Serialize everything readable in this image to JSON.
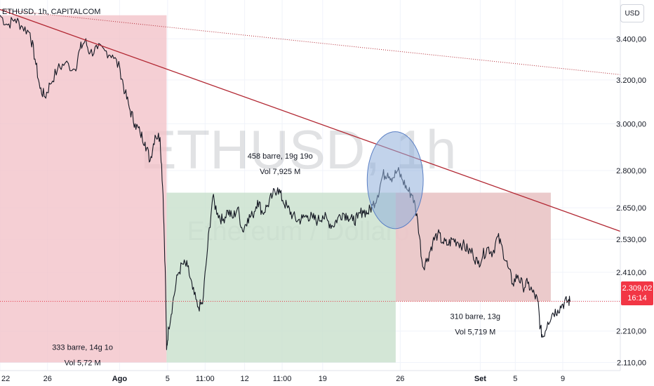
{
  "header": {
    "symbol_line": "ETHUSD, 1h, CAPITALCOM",
    "currency_button": "USD"
  },
  "watermark": {
    "symbol": "ETHUSD, 1h",
    "name": "Ethereum / Dollaro"
  },
  "price_tag": {
    "price": "2.309,02",
    "countdown": "16:14"
  },
  "colors": {
    "up_box": "#c8e0cc",
    "down_box": "#f2c2c8",
    "trendline": "#b22833",
    "price_line": "#e53946",
    "circle": "#8faedb",
    "candles": "#131722"
  },
  "chart_data": {
    "type": "line",
    "title": "",
    "xlabel": "",
    "ylabel": "",
    "y_scale": "log",
    "ylim": [
      2085,
      3600
    ],
    "x_unit": "hours since first visible bar",
    "xlim": [
      0,
      1240
    ],
    "x_ticks": [
      {
        "t": 0,
        "label": "22"
      },
      {
        "t": 95,
        "label": "26"
      },
      {
        "t": 239,
        "label": "Ago"
      },
      {
        "t": 335,
        "label": "5"
      },
      {
        "t": 410,
        "label": "11:00"
      },
      {
        "t": 489,
        "label": "12"
      },
      {
        "t": 564,
        "label": "11:00"
      },
      {
        "t": 645,
        "label": "19"
      },
      {
        "t": 800,
        "label": "26"
      },
      {
        "t": 960,
        "label": "Set"
      },
      {
        "t": 1030,
        "label": "5"
      },
      {
        "t": 1125,
        "label": "9"
      }
    ],
    "y_ticks": [
      {
        "v": 3400,
        "label": "3.400,00"
      },
      {
        "v": 3200,
        "label": "3.200,00"
      },
      {
        "v": 3000,
        "label": "3.000,00"
      },
      {
        "v": 2800,
        "label": "2.800,00"
      },
      {
        "v": 2650,
        "label": "2.650,00"
      },
      {
        "v": 2530,
        "label": "2.530,00"
      },
      {
        "v": 2410,
        "label": "2.410,00"
      },
      {
        "v": 2310,
        "label": ""
      },
      {
        "v": 2210,
        "label": "2.210,00"
      },
      {
        "v": 2110,
        "label": "2.110,00"
      }
    ],
    "series": [
      {
        "points": [
          [
            0,
            3520
          ],
          [
            15,
            3470
          ],
          [
            30,
            3500
          ],
          [
            45,
            3460
          ],
          [
            60,
            3430
          ],
          [
            70,
            3300
          ],
          [
            80,
            3160
          ],
          [
            90,
            3120
          ],
          [
            100,
            3180
          ],
          [
            115,
            3250
          ],
          [
            130,
            3280
          ],
          [
            150,
            3250
          ],
          [
            160,
            3350
          ],
          [
            170,
            3390
          ],
          [
            180,
            3330
          ],
          [
            195,
            3350
          ],
          [
            210,
            3340
          ],
          [
            225,
            3320
          ],
          [
            240,
            3250
          ],
          [
            250,
            3140
          ],
          [
            260,
            3060
          ],
          [
            270,
            3000
          ],
          [
            280,
            2960
          ],
          [
            290,
            2920
          ],
          [
            300,
            2840
          ],
          [
            310,
            2950
          ],
          [
            320,
            2940
          ],
          [
            326,
            2700
          ],
          [
            331,
            2360
          ],
          [
            333,
            2150
          ],
          [
            337,
            2220
          ],
          [
            345,
            2300
          ],
          [
            355,
            2400
          ],
          [
            365,
            2440
          ],
          [
            375,
            2430
          ],
          [
            385,
            2350
          ],
          [
            395,
            2290
          ],
          [
            405,
            2300
          ],
          [
            415,
            2500
          ],
          [
            425,
            2690
          ],
          [
            435,
            2630
          ],
          [
            445,
            2600
          ],
          [
            455,
            2640
          ],
          [
            465,
            2610
          ],
          [
            475,
            2650
          ],
          [
            485,
            2560
          ],
          [
            495,
            2610
          ],
          [
            505,
            2620
          ],
          [
            515,
            2680
          ],
          [
            525,
            2630
          ],
          [
            535,
            2660
          ],
          [
            545,
            2700
          ],
          [
            555,
            2730
          ],
          [
            565,
            2680
          ],
          [
            575,
            2650
          ],
          [
            585,
            2620
          ],
          [
            595,
            2600
          ],
          [
            605,
            2610
          ],
          [
            615,
            2620
          ],
          [
            625,
            2610
          ],
          [
            635,
            2600
          ],
          [
            645,
            2620
          ],
          [
            655,
            2600
          ],
          [
            665,
            2580
          ],
          [
            675,
            2610
          ],
          [
            685,
            2630
          ],
          [
            695,
            2620
          ],
          [
            705,
            2600
          ],
          [
            715,
            2610
          ],
          [
            725,
            2640
          ],
          [
            735,
            2630
          ],
          [
            745,
            2660
          ],
          [
            755,
            2700
          ],
          [
            765,
            2780
          ],
          [
            775,
            2790
          ],
          [
            785,
            2770
          ],
          [
            795,
            2800
          ],
          [
            805,
            2760
          ],
          [
            815,
            2720
          ],
          [
            825,
            2700
          ],
          [
            835,
            2600
          ],
          [
            845,
            2430
          ],
          [
            855,
            2460
          ],
          [
            865,
            2520
          ],
          [
            875,
            2550
          ],
          [
            885,
            2520
          ],
          [
            895,
            2510
          ],
          [
            905,
            2530
          ],
          [
            915,
            2520
          ],
          [
            925,
            2510
          ],
          [
            935,
            2490
          ],
          [
            945,
            2480
          ],
          [
            955,
            2440
          ],
          [
            965,
            2470
          ],
          [
            975,
            2500
          ],
          [
            985,
            2480
          ],
          [
            995,
            2540
          ],
          [
            1005,
            2490
          ],
          [
            1015,
            2430
          ],
          [
            1025,
            2370
          ],
          [
            1035,
            2400
          ],
          [
            1045,
            2360
          ],
          [
            1055,
            2370
          ],
          [
            1065,
            2340
          ],
          [
            1075,
            2310
          ],
          [
            1080,
            2220
          ],
          [
            1085,
            2190
          ],
          [
            1095,
            2240
          ],
          [
            1105,
            2270
          ],
          [
            1115,
            2280
          ],
          [
            1125,
            2300
          ],
          [
            1135,
            2310
          ],
          [
            1140,
            2309
          ]
        ]
      }
    ],
    "annotations": [
      {
        "type": "box",
        "color": "down",
        "t0": 0,
        "t1": 333,
        "v_top": 3520,
        "v_bottom": 2110
      },
      {
        "type": "box",
        "color": "up",
        "t0": 333,
        "t1": 791,
        "v_top": 2710,
        "v_bottom": 2110
      },
      {
        "type": "box",
        "color": "up",
        "t0": 791,
        "t1": 1101,
        "v_top": 2710,
        "v_bottom": 2309
      },
      {
        "type": "box",
        "color": "down",
        "t0": 791,
        "t1": 1101,
        "v_top": 2710,
        "v_bottom": 2309
      },
      {
        "type": "trendline",
        "style": "solid",
        "t0": 0,
        "v0": 3550,
        "t1": 1240,
        "v1": 2560
      },
      {
        "type": "trendline",
        "style": "dotted",
        "t0": 0,
        "v0": 3550,
        "t1": 1240,
        "v1": 3225
      },
      {
        "type": "hline",
        "style": "dotted",
        "v": 2309
      },
      {
        "type": "circle",
        "t": 790,
        "v": 2760,
        "rt": 56,
        "rv_top": 2965,
        "rv_bottom": 2570
      },
      {
        "type": "label",
        "t": 165,
        "v": 2150,
        "lines": [
          "333 barre, 14g 1o",
          "Vol 5,72 M"
        ]
      },
      {
        "type": "label",
        "t": 560,
        "v": 2850,
        "lines": [
          "458 barre, 19g 19o",
          "Vol 7,925 M"
        ]
      },
      {
        "type": "label",
        "t": 950,
        "v": 2250,
        "lines": [
          "310 barre, 13g",
          "Vol 5,719 M"
        ]
      }
    ]
  }
}
